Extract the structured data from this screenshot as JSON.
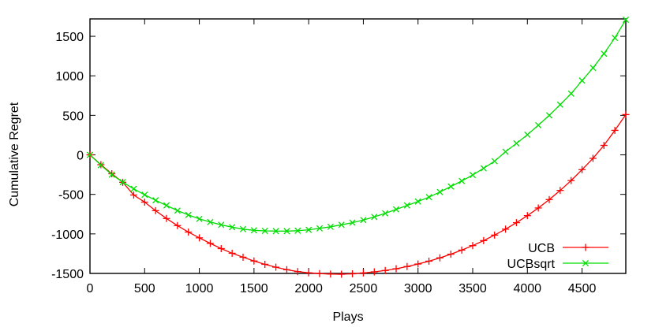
{
  "chart_data": {
    "type": "line",
    "xlabel": "Plays",
    "ylabel": "Cumulative Regret",
    "xlim": [
      0,
      4900
    ],
    "ylim": [
      -1500,
      1720
    ],
    "xticks": [
      0,
      500,
      1000,
      1500,
      2000,
      2500,
      3000,
      3500,
      4000,
      4500
    ],
    "yticks": [
      -1500,
      -1000,
      -500,
      0,
      500,
      1000,
      1500
    ],
    "grid": false,
    "legend_position": "bottom-right",
    "series": [
      {
        "name": "UCB",
        "color": "#ff0000",
        "marker": "plus",
        "x": [
          0,
          100,
          200,
          300,
          400,
          500,
          600,
          700,
          800,
          900,
          1000,
          1100,
          1200,
          1300,
          1400,
          1500,
          1600,
          1700,
          1800,
          1900,
          2000,
          2100,
          2200,
          2300,
          2400,
          2500,
          2600,
          2700,
          2800,
          2900,
          3000,
          3100,
          3200,
          3300,
          3400,
          3500,
          3600,
          3700,
          3800,
          3900,
          4000,
          4100,
          4200,
          4300,
          4400,
          4500,
          4600,
          4700,
          4800,
          4900
        ],
        "y": [
          0,
          -124,
          -239,
          -347,
          -508,
          -598,
          -706,
          -805,
          -895,
          -977,
          -1050,
          -1120,
          -1186,
          -1245,
          -1295,
          -1343,
          -1385,
          -1421,
          -1453,
          -1477,
          -1492,
          -1502,
          -1508,
          -1510,
          -1505,
          -1494,
          -1480,
          -1463,
          -1441,
          -1413,
          -1381,
          -1345,
          -1303,
          -1257,
          -1205,
          -1148,
          -1085,
          -1015,
          -940,
          -858,
          -769,
          -672,
          -566,
          -450,
          -325,
          -187,
          -44,
          120,
          310,
          510
        ]
      },
      {
        "name": "UCBsqrt",
        "color": "#00dd00",
        "marker": "x",
        "x": [
          0,
          100,
          200,
          300,
          400,
          500,
          600,
          700,
          800,
          900,
          1000,
          1100,
          1200,
          1300,
          1400,
          1500,
          1600,
          1700,
          1800,
          1900,
          2000,
          2100,
          2200,
          2300,
          2400,
          2500,
          2600,
          2700,
          2800,
          2900,
          3000,
          3100,
          3200,
          3300,
          3400,
          3500,
          3600,
          3700,
          3800,
          3900,
          4000,
          4100,
          4200,
          4300,
          4400,
          4500,
          4600,
          4700,
          4800,
          4900
        ],
        "y": [
          0,
          -130,
          -250,
          -345,
          -430,
          -505,
          -575,
          -640,
          -705,
          -760,
          -810,
          -850,
          -885,
          -915,
          -940,
          -955,
          -962,
          -965,
          -965,
          -960,
          -948,
          -930,
          -910,
          -885,
          -858,
          -825,
          -785,
          -740,
          -690,
          -640,
          -590,
          -535,
          -470,
          -400,
          -330,
          -255,
          -170,
          -80,
          40,
          145,
          255,
          375,
          500,
          635,
          775,
          940,
          1100,
          1280,
          1480,
          1710
        ]
      }
    ]
  }
}
